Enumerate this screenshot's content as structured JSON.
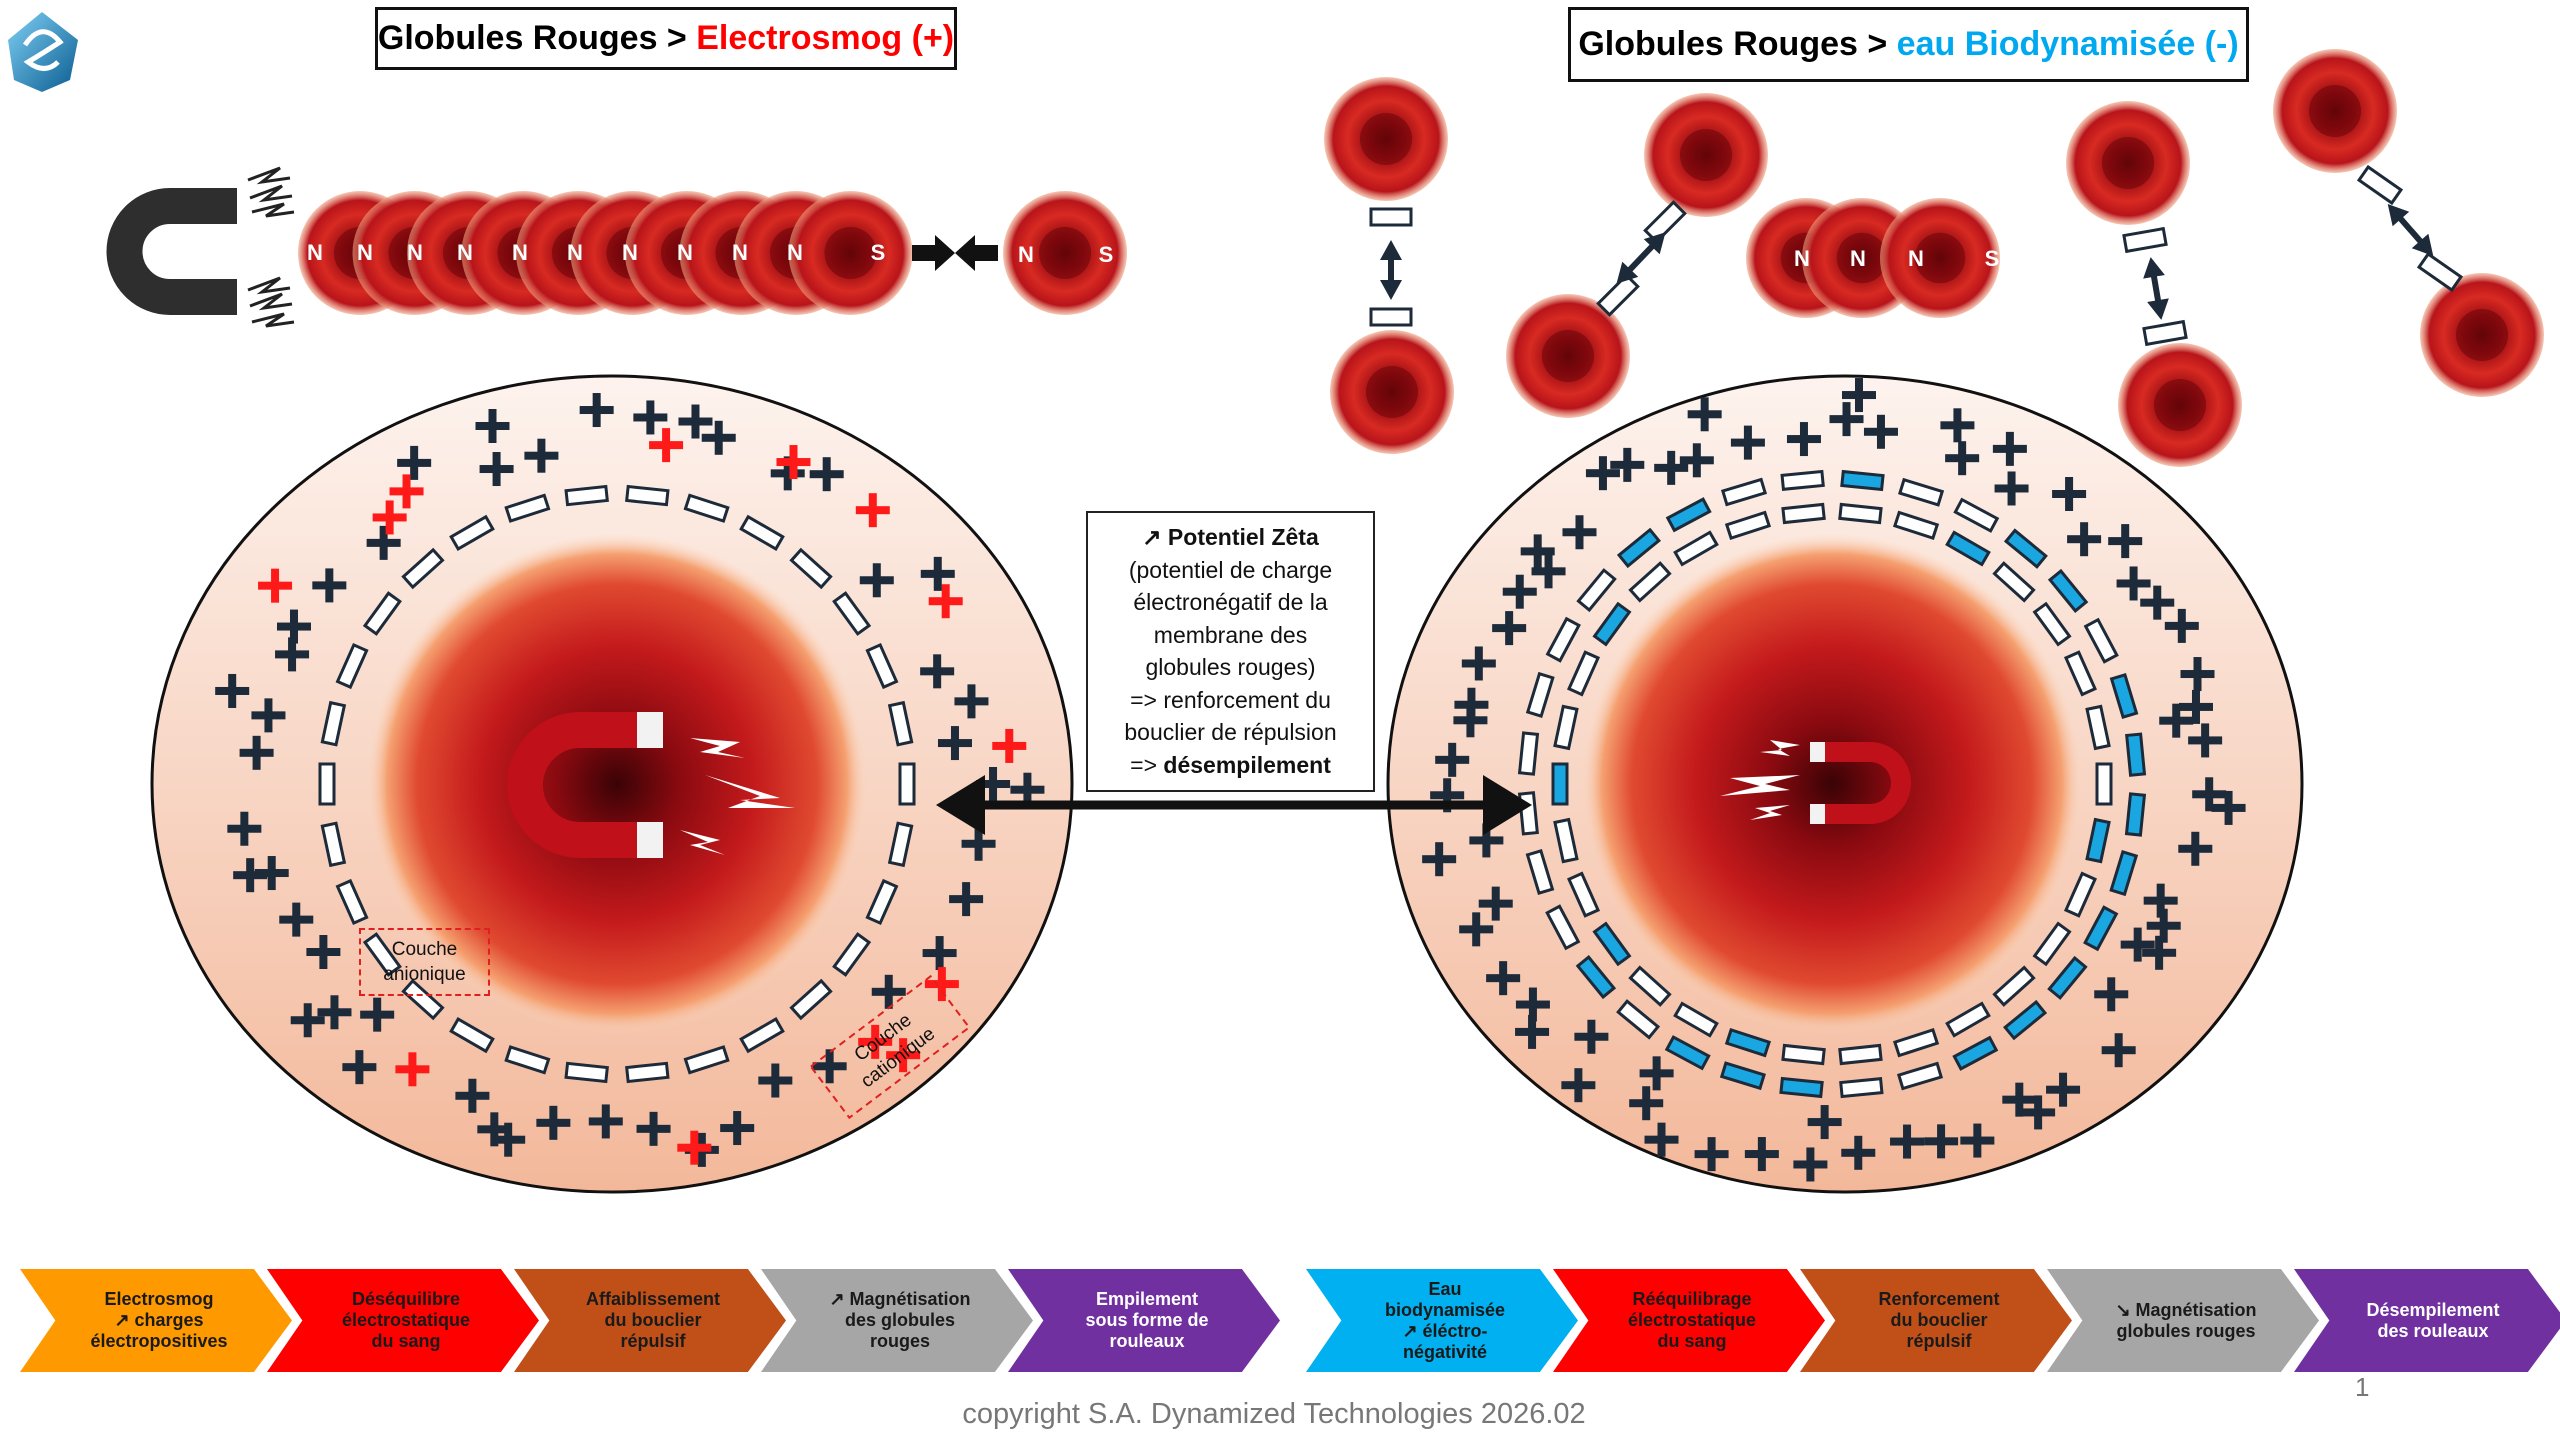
{
  "titles": {
    "left": {
      "prefix": "Globules Rouges > ",
      "highlight": "Electrosmog (+)",
      "highlight_color": "#ff0000"
    },
    "right": {
      "prefix": "Globules Rouges > ",
      "highlight": "eau Biodynamisée (-)",
      "highlight_color": "#00a8f0"
    }
  },
  "left_stack": {
    "labels": [
      "N",
      "N",
      "N",
      "N",
      "N",
      "N",
      "N",
      "N",
      "N",
      "N"
    ],
    "end_label": "S",
    "single_cell": [
      "N",
      "S"
    ]
  },
  "right_stack": {
    "labels": [
      "N",
      "N",
      "N"
    ],
    "end_label": "S"
  },
  "layer_labels": {
    "anionic": [
      "Couche",
      "anionique"
    ],
    "cationic": [
      "Couche",
      "cationique"
    ]
  },
  "info_box": {
    "title": "↗ Potentiel Zêta",
    "lines": [
      "(potentiel de charge",
      "électronégatif de la",
      "membrane des",
      "globules rouges)",
      "=> renforcement du",
      "bouclier de répulsion"
    ],
    "last_prefix": "=> ",
    "last_bold": "désempilement"
  },
  "process_left": [
    {
      "lines": [
        "Electrosmog",
        "↗ charges",
        "électropositives"
      ],
      "color": "#ff9900",
      "text_color": "#1a1a1a"
    },
    {
      "lines": [
        "Déséquilibre",
        "électrostatique",
        "du sang"
      ],
      "color": "#ff0000",
      "text_color": "#1a1a1a"
    },
    {
      "lines": [
        "Affaiblissement",
        "du bouclier",
        "répulsif"
      ],
      "color": "#c05018",
      "text_color": "#1a1a1a"
    },
    {
      "lines": [
        "↗ Magnétisation",
        "des globules",
        "rouges"
      ],
      "color": "#a6a6a6",
      "text_color": "#1a1a1a"
    },
    {
      "lines": [
        "Empilement",
        "sous forme de",
        "rouleaux"
      ],
      "color": "#7030a0",
      "text_color": "#ffffff"
    }
  ],
  "process_right": [
    {
      "lines": [
        "Eau",
        "biodynamisée",
        "↗ éléctro-",
        "négativité"
      ],
      "color": "#00b0f0",
      "text_color": "#1a1a1a"
    },
    {
      "lines": [
        "Rééquilibrage",
        "électrostatique",
        "du sang"
      ],
      "color": "#ff0000",
      "text_color": "#1a1a1a"
    },
    {
      "lines": [
        "Renforcement",
        "du bouclier",
        "répulsif"
      ],
      "color": "#c05018",
      "text_color": "#1a1a1a"
    },
    {
      "lines": [
        "↘ Magnétisation",
        "globules rouges"
      ],
      "color": "#a6a6a6",
      "text_color": "#1a1a1a"
    },
    {
      "lines": [
        "Désempilement",
        "des rouleaux"
      ],
      "color": "#7030a0",
      "text_color": "#ffffff"
    }
  ],
  "colors": {
    "positive_charge": "#1c2a3a",
    "positive_charge_red": "#ff1a1a",
    "negative_charge_blue": "#1aa6e0",
    "cell": "#c0141a"
  },
  "icons": {
    "logo": "spiral-logo-icon",
    "magnet": "horseshoe-magnet-icon",
    "lightning": "lightning-icon"
  },
  "footer": {
    "copyright": "copyright S.A. Dynamized Technologies 2026.02",
    "page": "1"
  }
}
